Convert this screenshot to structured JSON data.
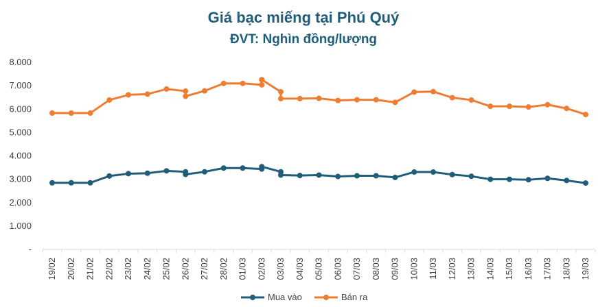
{
  "chart_data": {
    "type": "line",
    "title": "Giá bạc miếng tại Phú Quý",
    "subtitle": "ĐVT: Nghìn đồng/lượng",
    "ylim": [
      0,
      8000
    ],
    "yticks": [
      "-",
      "1.000",
      "2.000",
      "3.000",
      "4.000",
      "5.000",
      "6.000",
      "7.000",
      "8.000"
    ],
    "categories": [
      "19/02",
      "20/02",
      "21/02",
      "22/02",
      "23/02",
      "24/02",
      "25/02",
      "26/02",
      "27/02",
      "28/02",
      "01/03",
      "02/03",
      "03/03",
      "04/03",
      "05/03",
      "06/03",
      "07/03",
      "08/03",
      "09/03",
      "10/03",
      "11/03",
      "12/03",
      "13/03",
      "14/03",
      "15/03",
      "16/03",
      "17/03",
      "18/03",
      "19/03"
    ],
    "legend_position": "bottom",
    "series": [
      {
        "name": "Mua vào",
        "color": "#1f5d7a",
        "points": [
          {
            "x": 0,
            "y": 2850
          },
          {
            "x": 1,
            "y": 2850
          },
          {
            "x": 2,
            "y": 2850
          },
          {
            "x": 3,
            "y": 3140
          },
          {
            "x": 4,
            "y": 3240
          },
          {
            "x": 5,
            "y": 3260
          },
          {
            "x": 6,
            "y": 3360
          },
          {
            "x": 7,
            "y": 3320
          },
          {
            "x": 7,
            "y": 3210
          },
          {
            "x": 8,
            "y": 3320
          },
          {
            "x": 9,
            "y": 3480
          },
          {
            "x": 10,
            "y": 3480
          },
          {
            "x": 11,
            "y": 3440
          },
          {
            "x": 11,
            "y": 3540
          },
          {
            "x": 12,
            "y": 3320
          },
          {
            "x": 12,
            "y": 3180
          },
          {
            "x": 13,
            "y": 3160
          },
          {
            "x": 14,
            "y": 3180
          },
          {
            "x": 15,
            "y": 3120
          },
          {
            "x": 16,
            "y": 3150
          },
          {
            "x": 17,
            "y": 3150
          },
          {
            "x": 18,
            "y": 3080
          },
          {
            "x": 19,
            "y": 3310
          },
          {
            "x": 20,
            "y": 3310
          },
          {
            "x": 21,
            "y": 3200
          },
          {
            "x": 22,
            "y": 3130
          },
          {
            "x": 23,
            "y": 3000
          },
          {
            "x": 24,
            "y": 3000
          },
          {
            "x": 25,
            "y": 2980
          },
          {
            "x": 26,
            "y": 3040
          },
          {
            "x": 27,
            "y": 2950
          },
          {
            "x": 28,
            "y": 2840
          }
        ]
      },
      {
        "name": "Bán ra",
        "color": "#ed7d31",
        "points": [
          {
            "x": 0,
            "y": 5830
          },
          {
            "x": 1,
            "y": 5830
          },
          {
            "x": 2,
            "y": 5830
          },
          {
            "x": 3,
            "y": 6390
          },
          {
            "x": 4,
            "y": 6610
          },
          {
            "x": 5,
            "y": 6640
          },
          {
            "x": 6,
            "y": 6860
          },
          {
            "x": 7,
            "y": 6770
          },
          {
            "x": 7,
            "y": 6550
          },
          {
            "x": 8,
            "y": 6780
          },
          {
            "x": 9,
            "y": 7100
          },
          {
            "x": 10,
            "y": 7100
          },
          {
            "x": 11,
            "y": 7040
          },
          {
            "x": 11,
            "y": 7260
          },
          {
            "x": 12,
            "y": 6740
          },
          {
            "x": 12,
            "y": 6450
          },
          {
            "x": 13,
            "y": 6450
          },
          {
            "x": 14,
            "y": 6460
          },
          {
            "x": 15,
            "y": 6370
          },
          {
            "x": 16,
            "y": 6400
          },
          {
            "x": 17,
            "y": 6400
          },
          {
            "x": 18,
            "y": 6290
          },
          {
            "x": 19,
            "y": 6730
          },
          {
            "x": 20,
            "y": 6750
          },
          {
            "x": 21,
            "y": 6490
          },
          {
            "x": 22,
            "y": 6390
          },
          {
            "x": 23,
            "y": 6120
          },
          {
            "x": 24,
            "y": 6120
          },
          {
            "x": 25,
            "y": 6090
          },
          {
            "x": 26,
            "y": 6190
          },
          {
            "x": 27,
            "y": 6030
          },
          {
            "x": 28,
            "y": 5770
          }
        ]
      }
    ]
  }
}
